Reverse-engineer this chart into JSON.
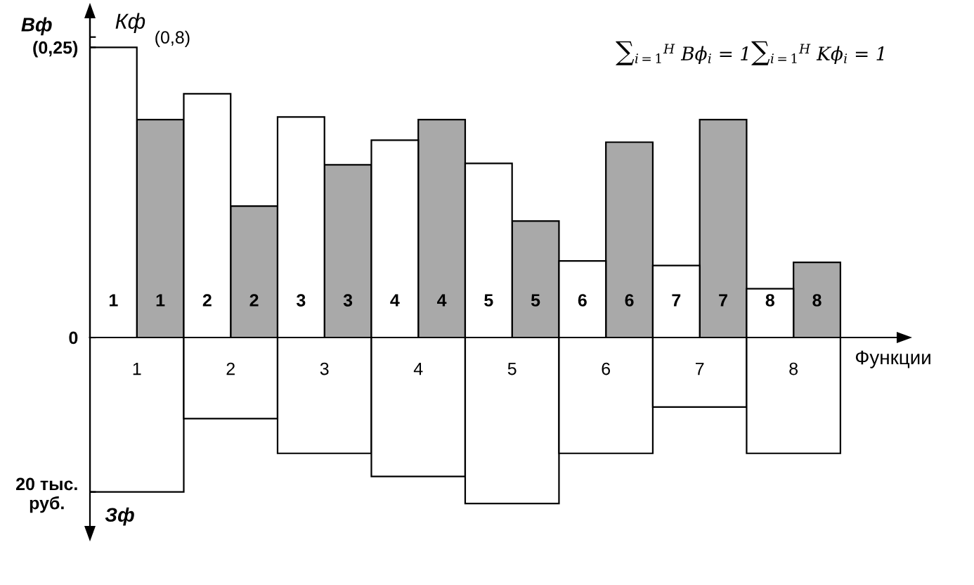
{
  "chart_data": [
    {
      "type": "bar",
      "ylabel": "Вф",
      "y2label": "Кф",
      "categories": [
        "1",
        "1",
        "2",
        "2",
        "3",
        "3",
        "4",
        "4",
        "5",
        "5",
        "6",
        "6",
        "7",
        "7",
        "8",
        "8"
      ],
      "series": [
        {
          "color": "#ffffff",
          "values": [
            0.25,
            null,
            0.21,
            null,
            0.19,
            null,
            0.17,
            null,
            0.15,
            null,
            0.066,
            null,
            0.062,
            null,
            0.042,
            null
          ]
        },
        {
          "color": "#a9a9a9",
          "axis": "y2",
          "values": [
            null,
            0.58,
            null,
            0.35,
            null,
            0.46,
            null,
            0.58,
            null,
            0.31,
            null,
            0.52,
            null,
            0.58,
            null,
            0.2
          ]
        }
      ],
      "ylim": [
        0,
        0.275
      ],
      "yticks": [
        {
          "value": 0.25,
          "label": "(0,25)"
        }
      ],
      "y2lim": [
        0,
        0.85
      ],
      "y2ticks": [
        {
          "value": 0.8,
          "label": "(0,8)"
        }
      ],
      "annotations": [
        "∑$_{i=1}$$^{H}$ Bϕ$_{i}$ = 1∑$_{i=1}$$^{H}$ Kϕ$_{i}$ = 1"
      ]
    },
    {
      "type": "bar",
      "xlabel": "Функции",
      "ylabel": "Зф",
      "categories": [
        "1",
        "2",
        "3",
        "4",
        "5",
        "6",
        "7",
        "8"
      ],
      "values": [
        20,
        10.5,
        15,
        18,
        21.5,
        15,
        9,
        15
      ],
      "color": "#ffffff",
      "ylim": [
        24.4,
        0
      ],
      "yticks": [
        0,
        {
          "value": 20,
          "label": "20 тыс.\nруб."
        }
      ]
    }
  ]
}
